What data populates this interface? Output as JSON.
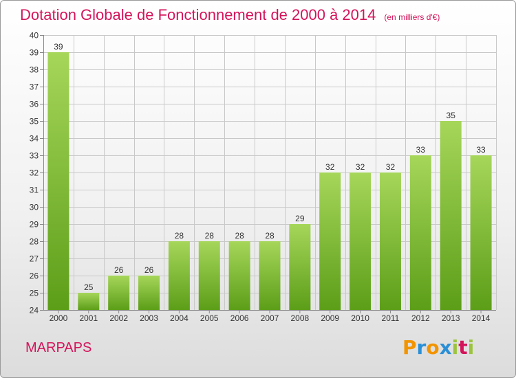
{
  "title": "Dotation Globale de Fonctionnement de 2000 à 2014",
  "unit_label": "(en milliers d'€)",
  "commune": "MARPAPS",
  "brand": {
    "letters": [
      "P",
      "r",
      "o",
      "x",
      "i",
      "t",
      "i"
    ],
    "colors": [
      "#f29400",
      "#2b8fd6",
      "#f29400",
      "#2b8fd6",
      "#9bc43c",
      "#d4145a",
      "#9bc43c"
    ]
  },
  "colors": {
    "title": "#d4145a",
    "bar_top": "#a6d65a",
    "bar_bottom": "#5c9e18",
    "grid": "#c8c8c8"
  },
  "chart_data": {
    "type": "bar",
    "categories": [
      "2000",
      "2001",
      "2002",
      "2003",
      "2004",
      "2005",
      "2006",
      "2007",
      "2008",
      "2009",
      "2010",
      "2011",
      "2012",
      "2013",
      "2014"
    ],
    "values": [
      39,
      25,
      26,
      26,
      28,
      28,
      28,
      28,
      29,
      32,
      32,
      32,
      33,
      35,
      33
    ],
    "ylim": [
      24,
      40
    ],
    "yticks": [
      24,
      25,
      26,
      27,
      28,
      29,
      30,
      31,
      32,
      33,
      34,
      35,
      36,
      37,
      38,
      39,
      40
    ],
    "grid": true,
    "xlabel": "",
    "ylabel": ""
  }
}
